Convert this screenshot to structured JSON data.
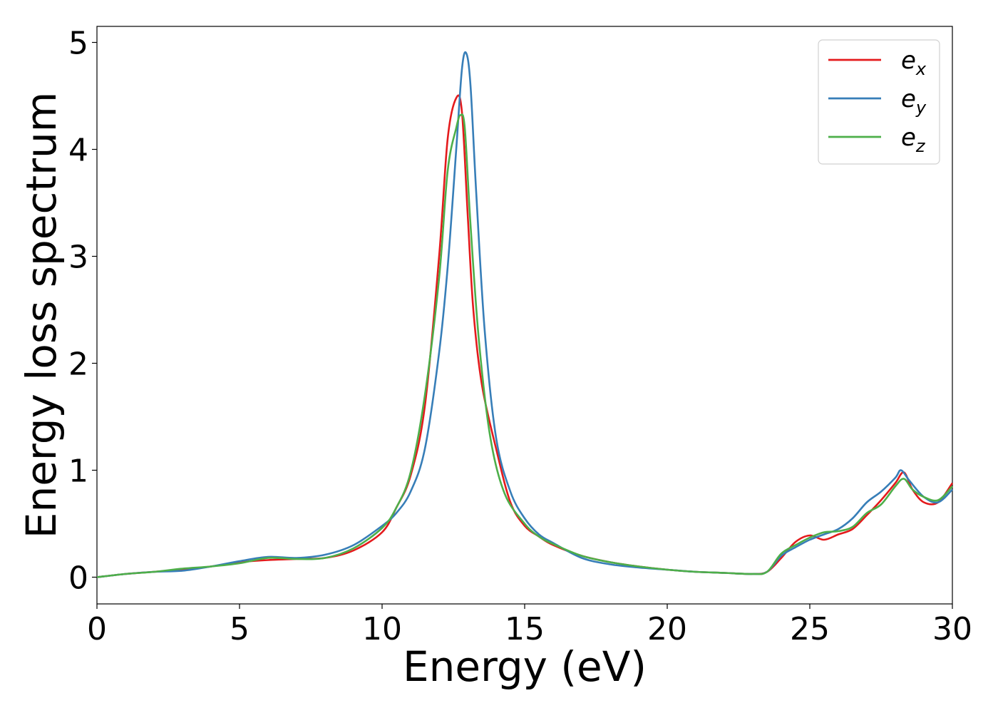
{
  "chart_data": {
    "type": "line",
    "xlabel": "Energy (eV)",
    "ylabel": "Energy loss spectrum",
    "xlim": [
      0,
      30
    ],
    "ylim": [
      -0.25,
      5.15
    ],
    "xticks": [
      0,
      5,
      10,
      15,
      20,
      25,
      30
    ],
    "yticks": [
      0,
      1,
      2,
      3,
      4,
      5
    ],
    "grid": false,
    "legend_position": "top-right",
    "series": [
      {
        "name": "e",
        "subscript": "x",
        "color": "#e41a1c",
        "points": [
          [
            0,
            0
          ],
          [
            1,
            0.03
          ],
          [
            2,
            0.05
          ],
          [
            3,
            0.07
          ],
          [
            4,
            0.1
          ],
          [
            5,
            0.14
          ],
          [
            6,
            0.16
          ],
          [
            7,
            0.17
          ],
          [
            8,
            0.18
          ],
          [
            9,
            0.25
          ],
          [
            10,
            0.42
          ],
          [
            10.5,
            0.65
          ],
          [
            11,
            0.95
          ],
          [
            11.5,
            1.6
          ],
          [
            12,
            3.0
          ],
          [
            12.3,
            4.1
          ],
          [
            12.6,
            4.48
          ],
          [
            12.8,
            4.35
          ],
          [
            13,
            3.4
          ],
          [
            13.2,
            2.5
          ],
          [
            13.5,
            1.8
          ],
          [
            14,
            1.2
          ],
          [
            14.5,
            0.7
          ],
          [
            15,
            0.48
          ],
          [
            15.5,
            0.38
          ],
          [
            16,
            0.3
          ],
          [
            17,
            0.2
          ],
          [
            18,
            0.14
          ],
          [
            19,
            0.1
          ],
          [
            20,
            0.07
          ],
          [
            21,
            0.05
          ],
          [
            22,
            0.04
          ],
          [
            23,
            0.03
          ],
          [
            23.5,
            0.05
          ],
          [
            24,
            0.18
          ],
          [
            24.5,
            0.33
          ],
          [
            25,
            0.39
          ],
          [
            25.5,
            0.35
          ],
          [
            26,
            0.4
          ],
          [
            26.5,
            0.45
          ],
          [
            27,
            0.58
          ],
          [
            27.5,
            0.72
          ],
          [
            28,
            0.88
          ],
          [
            28.3,
            0.98
          ],
          [
            28.6,
            0.82
          ],
          [
            29,
            0.7
          ],
          [
            29.5,
            0.7
          ],
          [
            30,
            0.88
          ]
        ]
      },
      {
        "name": "e",
        "subscript": "y",
        "color": "#377eb8",
        "points": [
          [
            0,
            0
          ],
          [
            1,
            0.03
          ],
          [
            2,
            0.05
          ],
          [
            3,
            0.06
          ],
          [
            4,
            0.1
          ],
          [
            5,
            0.15
          ],
          [
            6,
            0.19
          ],
          [
            7,
            0.18
          ],
          [
            8,
            0.21
          ],
          [
            9,
            0.3
          ],
          [
            10,
            0.48
          ],
          [
            10.5,
            0.6
          ],
          [
            11,
            0.8
          ],
          [
            11.5,
            1.2
          ],
          [
            12,
            2.1
          ],
          [
            12.3,
            2.9
          ],
          [
            12.6,
            4.0
          ],
          [
            12.8,
            4.75
          ],
          [
            12.95,
            4.9
          ],
          [
            13.1,
            4.6
          ],
          [
            13.3,
            3.6
          ],
          [
            13.6,
            2.3
          ],
          [
            14,
            1.3
          ],
          [
            14.5,
            0.8
          ],
          [
            15,
            0.55
          ],
          [
            15.5,
            0.4
          ],
          [
            16,
            0.32
          ],
          [
            17,
            0.18
          ],
          [
            18,
            0.12
          ],
          [
            19,
            0.09
          ],
          [
            20,
            0.07
          ],
          [
            21,
            0.05
          ],
          [
            22,
            0.04
          ],
          [
            23,
            0.03
          ],
          [
            23.5,
            0.05
          ],
          [
            24,
            0.2
          ],
          [
            24.5,
            0.28
          ],
          [
            25,
            0.35
          ],
          [
            25.5,
            0.4
          ],
          [
            26,
            0.45
          ],
          [
            26.5,
            0.55
          ],
          [
            27,
            0.7
          ],
          [
            27.5,
            0.8
          ],
          [
            28,
            0.93
          ],
          [
            28.2,
            1.0
          ],
          [
            28.5,
            0.9
          ],
          [
            29,
            0.75
          ],
          [
            29.5,
            0.7
          ],
          [
            30,
            0.82
          ]
        ]
      },
      {
        "name": "e",
        "subscript": "z",
        "color": "#4daf4a",
        "points": [
          [
            0,
            0
          ],
          [
            1,
            0.03
          ],
          [
            2,
            0.05
          ],
          [
            3,
            0.08
          ],
          [
            4,
            0.1
          ],
          [
            5,
            0.13
          ],
          [
            6,
            0.18
          ],
          [
            7,
            0.17
          ],
          [
            8,
            0.18
          ],
          [
            9,
            0.27
          ],
          [
            10,
            0.46
          ],
          [
            10.5,
            0.65
          ],
          [
            11,
            0.98
          ],
          [
            11.5,
            1.7
          ],
          [
            12,
            2.8
          ],
          [
            12.3,
            3.8
          ],
          [
            12.6,
            4.2
          ],
          [
            12.75,
            4.32
          ],
          [
            12.9,
            4.2
          ],
          [
            13.1,
            3.3
          ],
          [
            13.4,
            2.2
          ],
          [
            13.8,
            1.3
          ],
          [
            14.3,
            0.78
          ],
          [
            15,
            0.5
          ],
          [
            15.5,
            0.38
          ],
          [
            16,
            0.31
          ],
          [
            17,
            0.2
          ],
          [
            18,
            0.14
          ],
          [
            19,
            0.1
          ],
          [
            20,
            0.07
          ],
          [
            21,
            0.05
          ],
          [
            22,
            0.04
          ],
          [
            23,
            0.03
          ],
          [
            23.5,
            0.05
          ],
          [
            24,
            0.22
          ],
          [
            24.5,
            0.3
          ],
          [
            25,
            0.37
          ],
          [
            25.5,
            0.42
          ],
          [
            26,
            0.43
          ],
          [
            26.5,
            0.47
          ],
          [
            27,
            0.6
          ],
          [
            27.5,
            0.68
          ],
          [
            28,
            0.85
          ],
          [
            28.3,
            0.92
          ],
          [
            28.6,
            0.82
          ],
          [
            29,
            0.75
          ],
          [
            29.5,
            0.72
          ],
          [
            30,
            0.85
          ]
        ]
      }
    ]
  }
}
